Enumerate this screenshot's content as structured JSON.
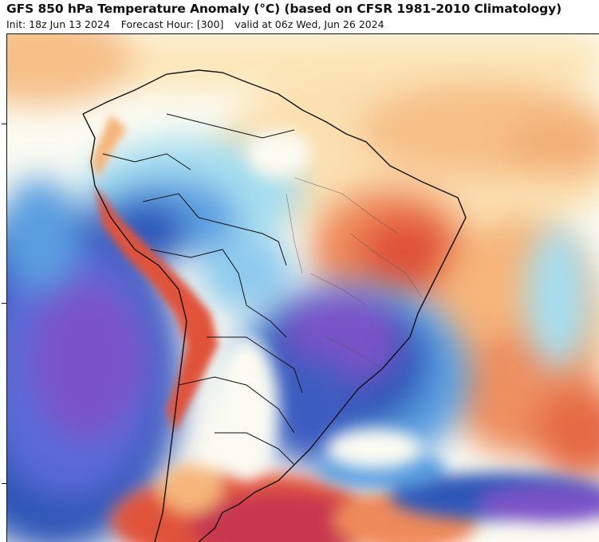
{
  "header": {
    "title": "GFS 850 hPa Temperature Anomaly (°C) (based on CFSR 1981-2010 Climatology)",
    "init": "Init: 18z Jun 13 2024",
    "forecast_hour": "Forecast Hour: [300]",
    "valid": "valid at 06z Wed, Jun 26 2024"
  },
  "palette": {
    "deep_cold": "#7a52c8",
    "cold": "#2f56b8",
    "cool": "#5a9ee0",
    "light_cool": "#a6def0",
    "neutral": "#fbfbf2",
    "light_warm": "#fbe6b8",
    "warm": "#f6b57a",
    "hot": "#e0533a",
    "very_hot": "#c7384f",
    "border": "#111111"
  }
}
